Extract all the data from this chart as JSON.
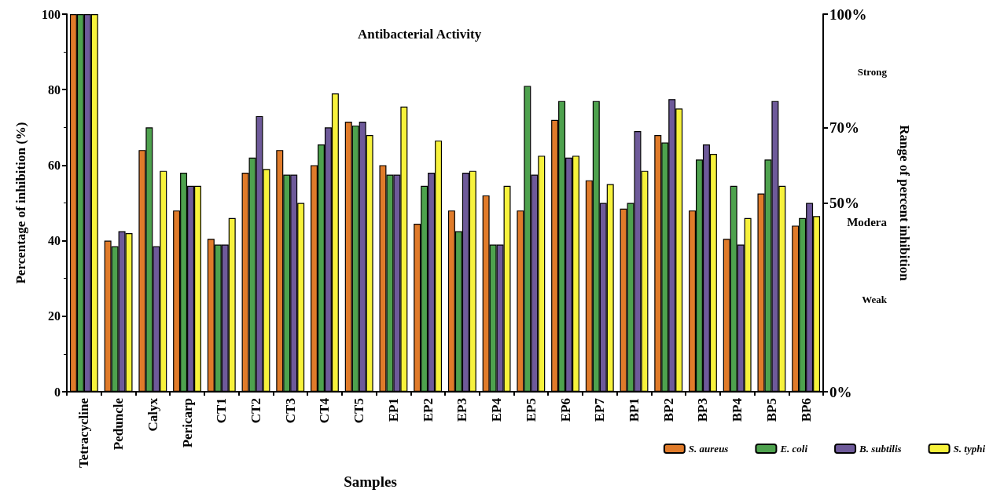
{
  "chart_data": {
    "type": "bar",
    "title": "Antibacterial Activity",
    "xlabel": "Samples",
    "ylabel": "Percentage of inhibition (%)",
    "y2label": "Range of percent inhibition",
    "categories": [
      "Tetracycline",
      "Peduncle",
      "Calyx",
      "Pericarp",
      "CT1",
      "CT2",
      "CT3",
      "CT4",
      "CT5",
      "EP1",
      "EP2",
      "EP3",
      "EP4",
      "EP5",
      "EP6",
      "EP7",
      "BP1",
      "BP2",
      "BP3",
      "BP4",
      "BP5",
      "BP6"
    ],
    "series": [
      {
        "name": "S. aureus",
        "color": "#e07b2a",
        "values": [
          100,
          40,
          64,
          48,
          40.5,
          58,
          64,
          60,
          71.5,
          60,
          44.5,
          48,
          52,
          48,
          72,
          56,
          48.5,
          68,
          48,
          40.5,
          52.5,
          44
        ]
      },
      {
        "name": "E. coli",
        "color": "#4ea24e",
        "values": [
          100,
          38.5,
          70,
          58,
          39,
          62,
          57.5,
          65.5,
          70.5,
          57.5,
          54.5,
          42.5,
          39,
          81,
          77,
          77,
          50,
          66,
          61.5,
          54.5,
          61.5,
          46
        ]
      },
      {
        "name": "B. subtilis",
        "color": "#6e5a9a",
        "values": [
          100,
          42.5,
          38.5,
          54.5,
          39,
          73,
          57.5,
          70,
          71.5,
          57.5,
          58,
          58,
          39,
          57.5,
          62,
          50,
          69,
          77.5,
          65.5,
          39,
          77,
          50
        ]
      },
      {
        "name": "S. typhi",
        "color": "#f7f23c",
        "values": [
          100,
          42,
          58.5,
          54.5,
          46,
          59,
          50,
          79,
          68,
          75.5,
          66.5,
          58.5,
          54.5,
          62.5,
          62.5,
          55,
          58.5,
          75,
          63,
          46,
          54.5,
          46.5
        ]
      }
    ],
    "ylim": [
      0,
      100
    ],
    "yticks": [
      0,
      20,
      40,
      60,
      80,
      100
    ],
    "y2lim": [
      0,
      100
    ],
    "y2ticks": [
      {
        "value": 0,
        "label": "0%"
      },
      {
        "value": 50,
        "label": "50%"
      },
      {
        "value": 70,
        "label": "70%"
      },
      {
        "value": 100,
        "label": "100%"
      }
    ],
    "annotations": [
      "Strong",
      "Modera",
      "Weak"
    ],
    "grid": false,
    "legend": "bottom right"
  }
}
